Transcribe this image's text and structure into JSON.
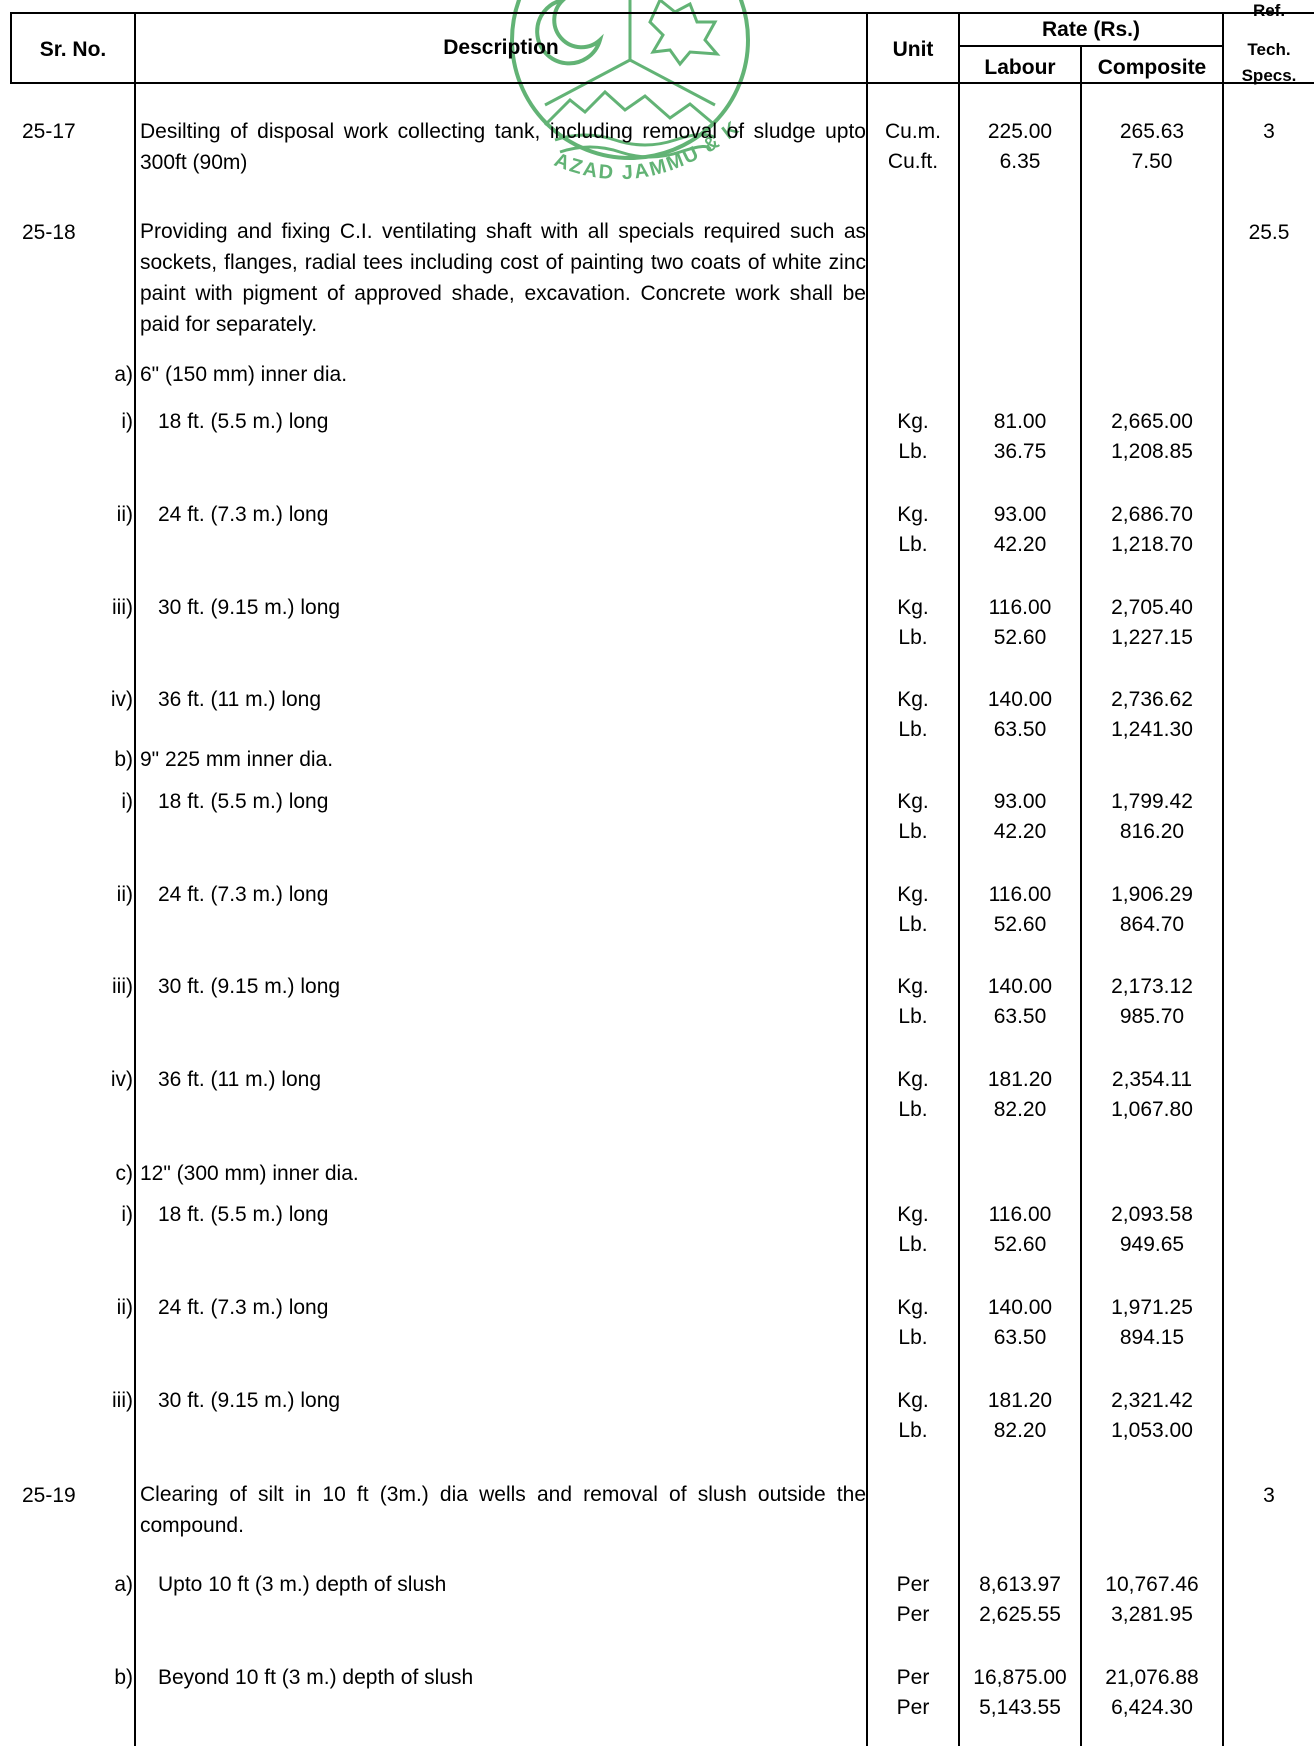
{
  "header": {
    "sr_no": "Sr. No.",
    "description": "Description",
    "unit": "Unit",
    "rate": "Rate (Rs.)",
    "labour": "Labour",
    "composite": "Composite",
    "ref_1": "Ref.",
    "ref_2": "Tech.",
    "ref_3": "Specs."
  },
  "watermark": {
    "text": "AZAD JAMMU & KASHMIR",
    "color": "#2e9a48"
  },
  "items": {
    "i2517": {
      "no": "25-17",
      "desc": "Desilting of disposal work collecting tank, including removal of sludge upto 300ft (90m)",
      "unit_1": "Cu.m.",
      "unit_2": "Cu.ft.",
      "labour_1": "225.00",
      "labour_2": "6.35",
      "comp_1": "265.63",
      "comp_2": "7.50",
      "ref": "3"
    },
    "i2518": {
      "no": "25-18",
      "desc": "Providing and fixing C.I. ventilating shaft with all specials required such as sockets, flanges, radial tees including cost of painting two coats of white zinc paint with pigment of approved shade, excavation. Concrete work shall be paid for separately.",
      "ref": "25.5",
      "a": {
        "label": "a)",
        "text": "6\" (150 mm) inner dia."
      },
      "a_i": {
        "label": "i)",
        "text": "18 ft. (5.5 m.) long",
        "u1": "Kg.",
        "u2": "Lb.",
        "l1": "81.00",
        "l2": "36.75",
        "c1": "2,665.00",
        "c2": "1,208.85"
      },
      "a_ii": {
        "label": "ii)",
        "text": "24 ft. (7.3 m.) long",
        "u1": "Kg.",
        "u2": "Lb.",
        "l1": "93.00",
        "l2": "42.20",
        "c1": "2,686.70",
        "c2": "1,218.70"
      },
      "a_iii": {
        "label": "iii)",
        "text": "30 ft. (9.15 m.) long",
        "u1": "Kg.",
        "u2": "Lb.",
        "l1": "116.00",
        "l2": "52.60",
        "c1": "2,705.40",
        "c2": "1,227.15"
      },
      "a_iv": {
        "label": "iv)",
        "text": "36 ft. (11 m.) long",
        "u1": "Kg.",
        "u2": "Lb.",
        "l1": "140.00",
        "l2": "63.50",
        "c1": "2,736.62",
        "c2": "1,241.30"
      },
      "b": {
        "label": "b)",
        "text": "9\" 225 mm inner dia."
      },
      "b_i": {
        "label": "i)",
        "text": "18 ft. (5.5 m.) long",
        "u1": "Kg.",
        "u2": "Lb.",
        "l1": "93.00",
        "l2": "42.20",
        "c1": "1,799.42",
        "c2": "816.20"
      },
      "b_ii": {
        "label": "ii)",
        "text": "24 ft. (7.3 m.) long",
        "u1": "Kg.",
        "u2": "Lb.",
        "l1": "116.00",
        "l2": "52.60",
        "c1": "1,906.29",
        "c2": "864.70"
      },
      "b_iii": {
        "label": "iii)",
        "text": "30 ft. (9.15 m.) long",
        "u1": "Kg.",
        "u2": "Lb.",
        "l1": "140.00",
        "l2": "63.50",
        "c1": "2,173.12",
        "c2": "985.70"
      },
      "b_iv": {
        "label": "iv)",
        "text": "36 ft. (11 m.) long",
        "u1": "Kg.",
        "u2": "Lb.",
        "l1": "181.20",
        "l2": "82.20",
        "c1": "2,354.11",
        "c2": "1,067.80"
      },
      "c": {
        "label": "c)",
        "text": "12\" (300 mm) inner dia."
      },
      "c_i": {
        "label": "i)",
        "text": "18 ft. (5.5 m.) long",
        "u1": "Kg.",
        "u2": "Lb.",
        "l1": "116.00",
        "l2": "52.60",
        "c1": "2,093.58",
        "c2": "949.65"
      },
      "c_ii": {
        "label": "ii)",
        "text": "24 ft. (7.3 m.) long",
        "u1": "Kg.",
        "u2": "Lb.",
        "l1": "140.00",
        "l2": "63.50",
        "c1": "1,971.25",
        "c2": "894.15"
      },
      "c_iii": {
        "label": "iii)",
        "text": "30 ft. (9.15 m.) long",
        "u1": "Kg.",
        "u2": "Lb.",
        "l1": "181.20",
        "l2": "82.20",
        "c1": "2,321.42",
        "c2": "1,053.00"
      }
    },
    "i2519": {
      "no": "25-19",
      "desc": "Clearing of silt in 10 ft (3m.) dia wells and removal of slush outside the compound.",
      "ref": "3",
      "a": {
        "label": "a)",
        "text": "Upto 10 ft (3 m.) depth of slush",
        "u1": "Per",
        "u2": "Per",
        "l1": "8,613.97",
        "l2": "2,625.55",
        "c1": "10,767.46",
        "c2": "3,281.95"
      },
      "b": {
        "label": "b)",
        "text": "Beyond 10 ft (3 m.) depth of slush",
        "u1": "Per",
        "u2": "Per",
        "l1": "16,875.00",
        "l2": "5,143.55",
        "c1": "21,076.88",
        "c2": "6,424.30"
      }
    }
  }
}
